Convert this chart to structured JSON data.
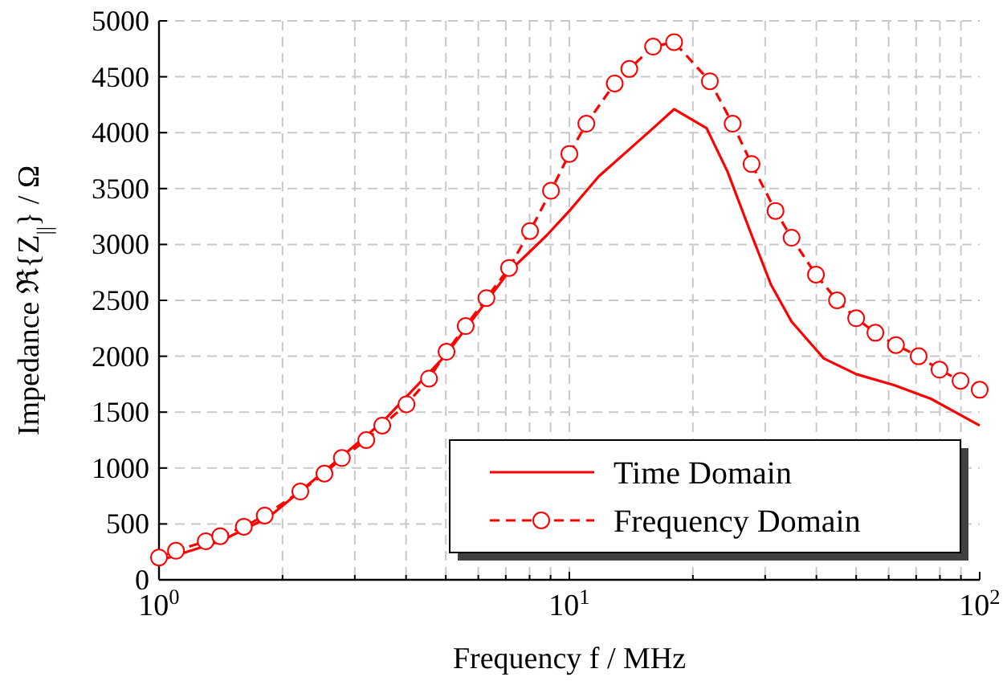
{
  "chart_data": {
    "type": "line",
    "xlabel": "Frequency f / MHz",
    "ylabel": "Impedance ℜ{Z$_{||}$} / Ω",
    "log": "x",
    "xlim": [
      1,
      100
    ],
    "ylim": [
      0,
      5000
    ],
    "xticks": [
      {
        "value": 1,
        "label": "10$^{0}$"
      },
      {
        "value": 10,
        "label": "10$^{1}$"
      },
      {
        "value": 100,
        "label": "10$^{2}$"
      }
    ],
    "yticks": [
      0,
      500,
      1000,
      1500,
      2000,
      2500,
      3000,
      3500,
      4000,
      4500,
      5000
    ],
    "grid": true,
    "legend": "bottom right",
    "series": [
      {
        "name": "Time Domain",
        "color": "#ff0000",
        "marker": "none",
        "line_style": "solid",
        "x": [
          1,
          1.41,
          1.85,
          2.49,
          3.5,
          4.97,
          7.1,
          8.8,
          10,
          11.8,
          16,
          18,
          21.6,
          24.3,
          27.5,
          31,
          34.8,
          41.7,
          50,
          62,
          76,
          100
        ],
        "values": [
          170,
          345,
          560,
          950,
          1410,
          2000,
          2750,
          3080,
          3300,
          3610,
          4040,
          4210,
          4040,
          3650,
          3130,
          2640,
          2310,
          1980,
          1840,
          1740,
          1620,
          1380
        ]
      },
      {
        "name": "Frequency Domain",
        "color": "#ff0000",
        "marker": "circle",
        "line_style": "dashed",
        "x": [
          1,
          1.1,
          1.3,
          1.41,
          1.61,
          1.81,
          2.21,
          2.53,
          2.79,
          3.2,
          3.5,
          4.01,
          4.55,
          5.02,
          5.59,
          6.28,
          7.13,
          8.02,
          9.02,
          10,
          11,
          12.9,
          14,
          16,
          18,
          22,
          25,
          27.8,
          31.8,
          34.8,
          39.9,
          44.9,
          50,
          55.7,
          62.5,
          71,
          79.8,
          89.8,
          100
        ],
        "values": [
          200,
          260,
          345,
          390,
          475,
          575,
          790,
          950,
          1090,
          1250,
          1380,
          1570,
          1800,
          2040,
          2270,
          2520,
          2790,
          3120,
          3480,
          3810,
          4080,
          4440,
          4570,
          4770,
          4810,
          4460,
          4080,
          3720,
          3300,
          3060,
          2730,
          2500,
          2340,
          2210,
          2100,
          2000,
          1880,
          1780,
          1700
        ]
      }
    ]
  }
}
